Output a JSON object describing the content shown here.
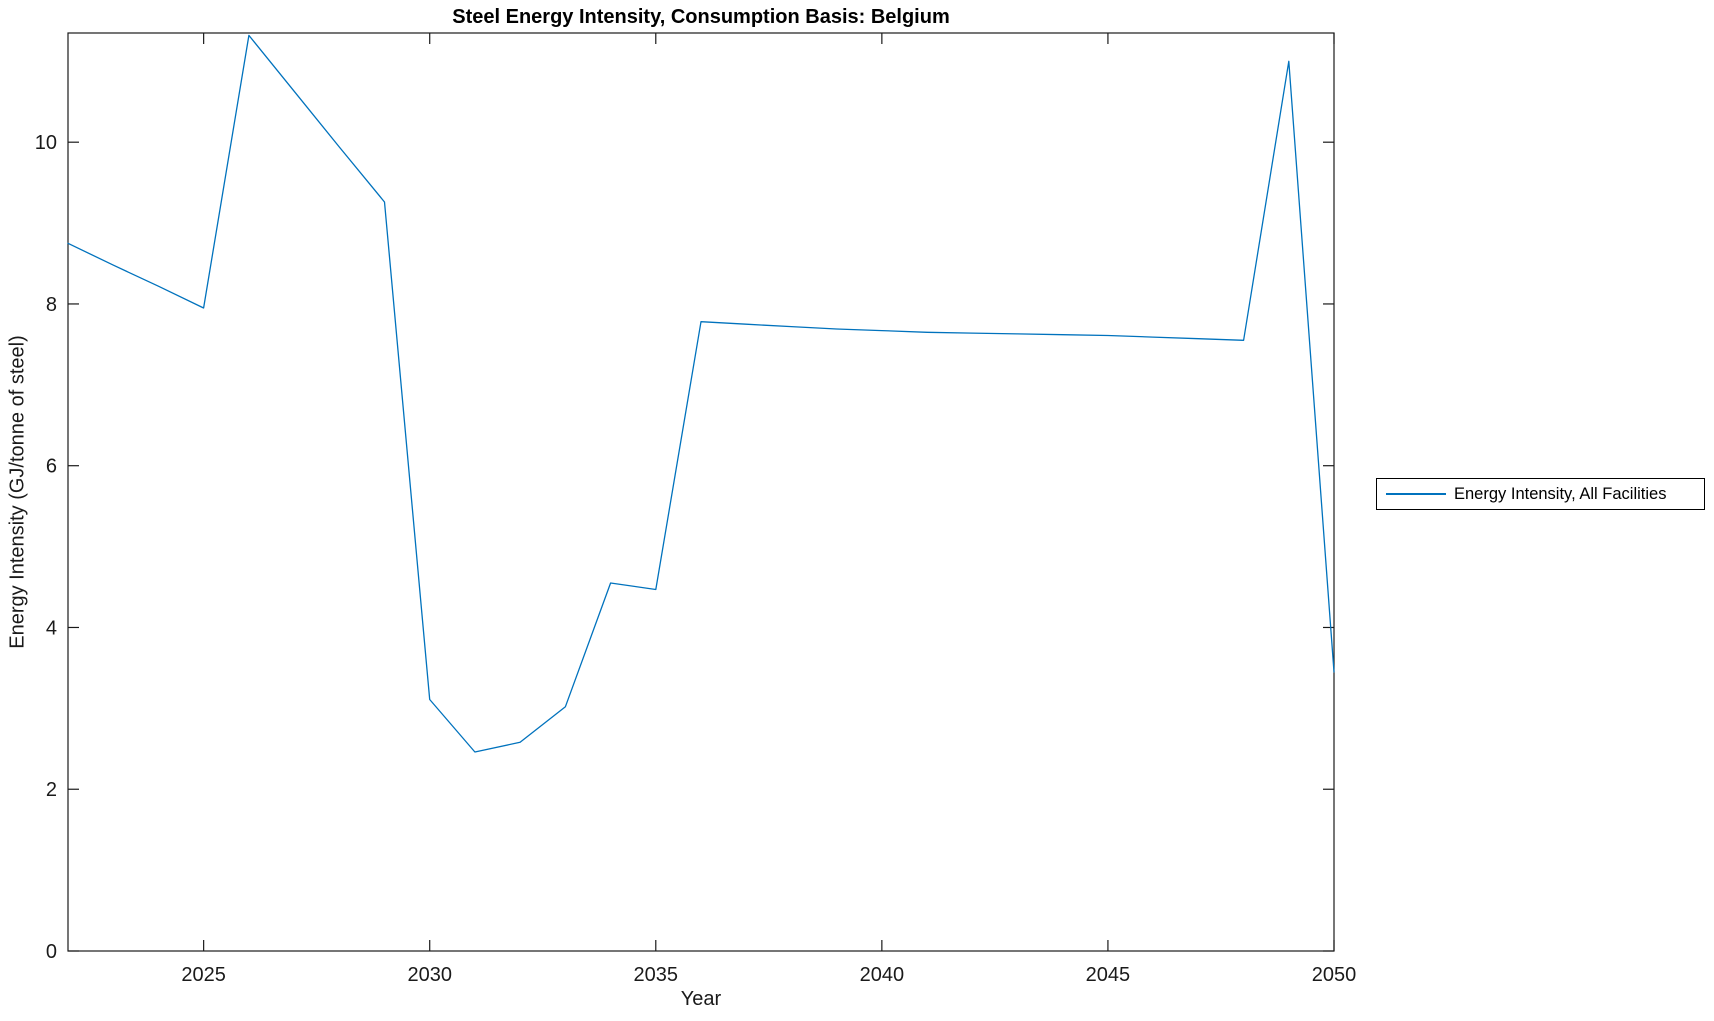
{
  "figure": {
    "background_color": "#ffffff",
    "axis_color": "#1a1a1a"
  },
  "chart_data": {
    "type": "line",
    "title": "Steel Energy Intensity, Consumption Basis: Belgium",
    "xlabel": "Year",
    "ylabel": "Energy Intensity (GJ/tonne of steel)",
    "xlim": [
      2022,
      2050
    ],
    "ylim": [
      0,
      11.35
    ],
    "x_ticks": [
      2025,
      2030,
      2035,
      2040,
      2045,
      2050
    ],
    "y_ticks": [
      0,
      2,
      4,
      6,
      8,
      10
    ],
    "grid": false,
    "legend_position": "outside-right",
    "x": [
      2022,
      2023,
      2024,
      2025,
      2026,
      2027,
      2028,
      2029,
      2030,
      2031,
      2032,
      2033,
      2034,
      2035,
      2036,
      2037,
      2038,
      2039,
      2040,
      2041,
      2042,
      2043,
      2044,
      2045,
      2046,
      2047,
      2048,
      2049,
      2050
    ],
    "series": [
      {
        "name": "Energy Intensity, All Facilities",
        "color": "#0072BD",
        "values": [
          8.75,
          8.48,
          8.22,
          7.95,
          11.32,
          10.63,
          9.94,
          9.26,
          3.11,
          2.46,
          2.58,
          3.02,
          4.55,
          4.47,
          7.78,
          7.75,
          7.72,
          7.69,
          7.67,
          7.65,
          7.64,
          7.63,
          7.62,
          7.61,
          7.59,
          7.57,
          7.55,
          11.0,
          3.45
        ]
      }
    ]
  }
}
